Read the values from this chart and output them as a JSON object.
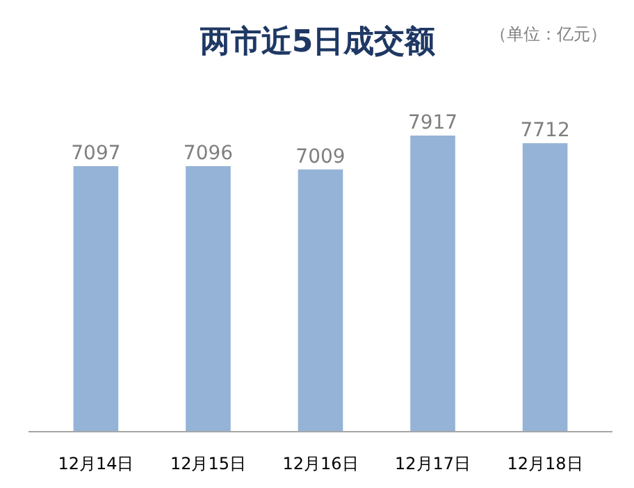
{
  "chart_data": {
    "type": "bar",
    "title": "两市近5日成交额",
    "subtitle": "（单位：亿元）",
    "categories": [
      "12月14日",
      "12月15日",
      "12月16日",
      "12月17日",
      "12月18日"
    ],
    "values": [
      7097,
      7096,
      7009,
      7917,
      7712
    ],
    "color": "#95b3d7",
    "data_labels": true,
    "grid": false,
    "tick_labels": "x"
  }
}
